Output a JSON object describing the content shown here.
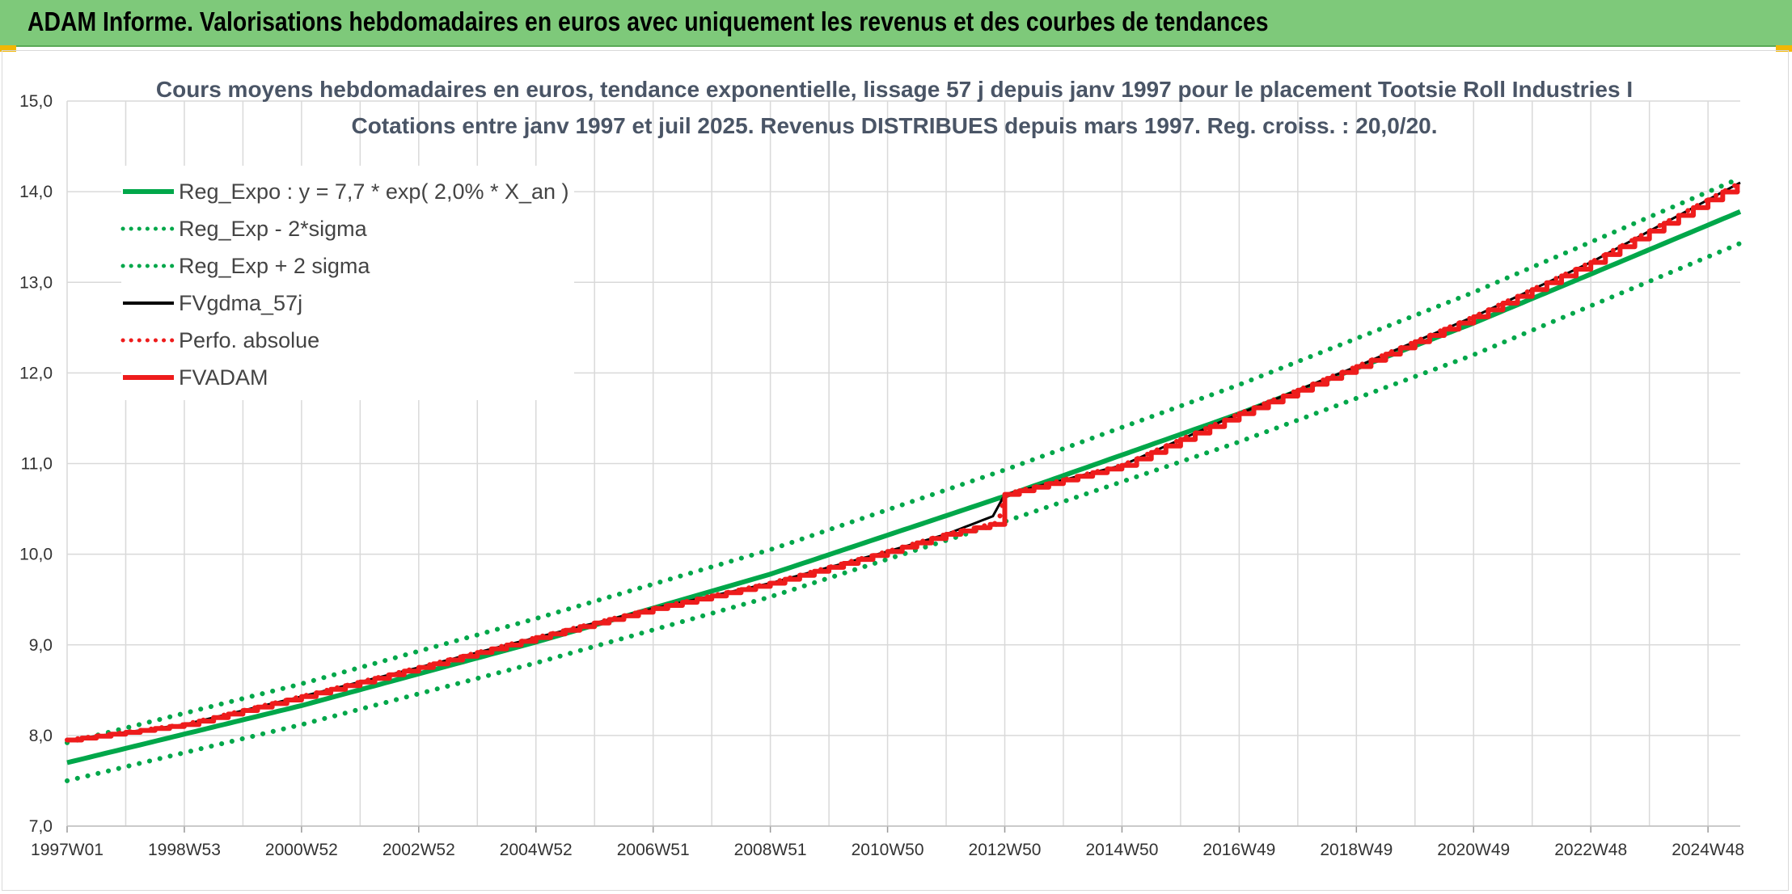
{
  "header": {
    "title": "ADAM Informe. Valorisations hebdomadaires en euros avec uniquement les revenus et des courbes de tendances"
  },
  "colors": {
    "banner": "#7ec97a",
    "green": "#00a74a",
    "red": "#ee1c1c",
    "black": "#000000"
  },
  "chart_data": {
    "type": "line",
    "title": "Cours moyens hebdomadaires en euros, tendance exponentielle, lissage 57 j depuis janv 1997 pour le placement Tootsie Roll Industries I",
    "subtitle": "Cotations entre janv 1997 et juil 2025. Revenus DISTRIBUES depuis mars 1997. Reg. croiss. : 20,0/20.",
    "xlabel": "",
    "ylabel": "",
    "ylim": [
      7.0,
      15.0
    ],
    "xlim": [
      1997.0,
      2025.55
    ],
    "y_ticks": [
      "7,0",
      "8,0",
      "9,0",
      "10,0",
      "11,0",
      "12,0",
      "13,0",
      "14,0",
      "15,0"
    ],
    "x_ticks": [
      {
        "label": "1997W01",
        "x": 1997.0
      },
      {
        "label": "1998W53",
        "x": 1999.0
      },
      {
        "label": "2000W52",
        "x": 2001.0
      },
      {
        "label": "2002W52",
        "x": 2003.0
      },
      {
        "label": "2004W52",
        "x": 2005.0
      },
      {
        "label": "2006W51",
        "x": 2007.0
      },
      {
        "label": "2008W51",
        "x": 2009.0
      },
      {
        "label": "2010W50",
        "x": 2011.0
      },
      {
        "label": "2012W50",
        "x": 2013.0
      },
      {
        "label": "2014W50",
        "x": 2015.0
      },
      {
        "label": "2016W49",
        "x": 2017.0
      },
      {
        "label": "2018W49",
        "x": 2019.0
      },
      {
        "label": "2020W49",
        "x": 2021.0
      },
      {
        "label": "2022W48",
        "x": 2023.0
      },
      {
        "label": "2024W48",
        "x": 2025.0
      }
    ],
    "grid": true,
    "legend_position": "top-left",
    "series": [
      {
        "name": "Reg_Expo : y = 7,7 * exp( 2,0% *  X_an )",
        "style": "solid",
        "color": "#00a74a",
        "x": [
          1997.0,
          2001.0,
          2005.0,
          2009.0,
          2013.0,
          2017.0,
          2021.0,
          2025.55
        ],
        "values": [
          7.7,
          8.33,
          9.03,
          9.78,
          10.64,
          11.55,
          12.55,
          13.78
        ]
      },
      {
        "name": "Reg_Exp - 2*sigma",
        "style": "dotted",
        "color": "#00a74a",
        "x": [
          1997.0,
          2001.0,
          2005.0,
          2009.0,
          2013.0,
          2017.0,
          2021.0,
          2025.55
        ],
        "values": [
          7.5,
          8.12,
          8.8,
          9.53,
          10.36,
          11.24,
          12.2,
          13.43
        ]
      },
      {
        "name": "Reg_Exp + 2 sigma",
        "style": "dotted",
        "color": "#00a74a",
        "x": [
          1997.0,
          2001.0,
          2005.0,
          2009.0,
          2013.0,
          2017.0,
          2021.0,
          2025.55
        ],
        "values": [
          7.92,
          8.57,
          9.29,
          10.05,
          10.93,
          11.87,
          12.89,
          14.15
        ]
      },
      {
        "name": "FVgdma_57j",
        "style": "solid",
        "color": "#000000",
        "x": [
          1997.0,
          1999.0,
          2001.0,
          2003.0,
          2005.0,
          2007.0,
          2009.0,
          2011.0,
          2012.0,
          2012.8,
          2013.0,
          2015.0,
          2017.0,
          2019.0,
          2021.0,
          2023.0,
          2025.55
        ],
        "values": [
          7.95,
          8.12,
          8.43,
          8.75,
          9.08,
          9.4,
          9.68,
          10.03,
          10.22,
          10.42,
          10.66,
          10.98,
          11.55,
          12.07,
          12.62,
          13.22,
          14.1
        ]
      },
      {
        "name": "Perfo. absolue",
        "style": "dotted",
        "color": "#ee1c1c",
        "x": [
          1997.0,
          1999.0,
          2001.0,
          2003.0,
          2005.0,
          2007.0,
          2009.0,
          2011.0,
          2012.0,
          2012.9,
          2013.0,
          2015.0,
          2017.0,
          2019.0,
          2021.0,
          2023.0,
          2025.55
        ],
        "values": [
          7.95,
          8.12,
          8.43,
          8.75,
          9.08,
          9.4,
          9.68,
          10.03,
          10.22,
          10.35,
          10.66,
          10.98,
          11.55,
          12.07,
          12.62,
          13.22,
          14.1
        ]
      },
      {
        "name": "FVADAM",
        "style": "step",
        "color": "#ee1c1c",
        "x": [
          1997.0,
          1999.0,
          2001.0,
          2003.0,
          2005.0,
          2007.0,
          2009.0,
          2011.0,
          2012.0,
          2012.9,
          2013.0,
          2015.0,
          2017.0,
          2019.0,
          2021.0,
          2023.0,
          2025.55
        ],
        "values": [
          7.95,
          8.12,
          8.43,
          8.75,
          9.08,
          9.4,
          9.68,
          10.03,
          10.22,
          10.35,
          10.66,
          10.98,
          11.55,
          12.07,
          12.62,
          13.22,
          14.1
        ]
      }
    ]
  }
}
